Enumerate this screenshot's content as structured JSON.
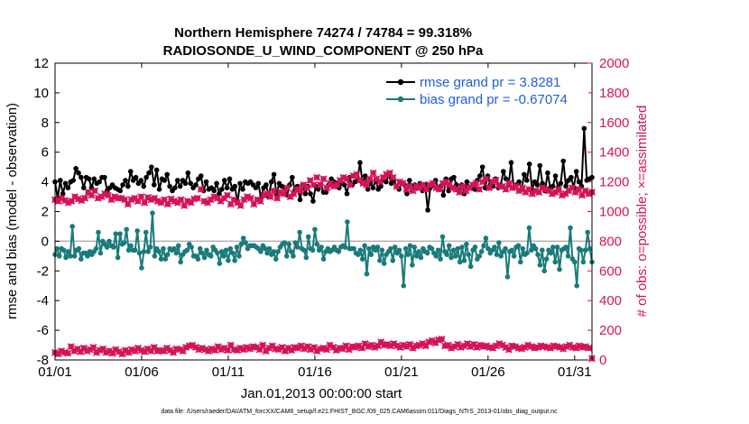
{
  "chart_data": {
    "type": "line",
    "title": "Northern Hemisphere 74274 / 74784 = 99.318%",
    "subtitle": "RADIOSONDE_U_WIND_COMPONENT @ 250 hPa",
    "xlabel": "Jan.01,2013 00:00:00 start",
    "ylabel": "rmse and bias (model - observation)",
    "y2label": "# of obs: o=possible; ×=assimilated",
    "x_ticks": [
      "01/01",
      "01/06",
      "01/11",
      "01/16",
      "01/21",
      "01/26",
      "01/31"
    ],
    "x_tick_days": [
      0,
      5,
      10,
      15,
      20,
      25,
      30
    ],
    "xlim": [
      0,
      31
    ],
    "ylim": [
      -8,
      12
    ],
    "y_ticks": [
      "-8",
      "-6",
      "-4",
      "-2",
      "0",
      "2",
      "4",
      "6",
      "8",
      "10",
      "12"
    ],
    "y2lim": [
      0,
      2000
    ],
    "y2_ticks": [
      "0",
      "200",
      "400",
      "600",
      "800",
      "1000",
      "1200",
      "1400",
      "1600",
      "1800",
      "2000"
    ],
    "zero_line": 0,
    "footer": "data file: /Users/raeder/DAI/ATM_forcXX/CAM6_setup/f.e21.FHIST_BGC.f09_025.CAM6assim.011/Diags_NTrS_2013-01/obs_diag_output.nc",
    "colors": {
      "rmse": "#000000",
      "bias": "#1a7a7a",
      "obs": "#d4145a",
      "legend_text": "#1f5fd9",
      "zero_line": "#b0b0b0"
    },
    "series": [
      {
        "name": "rmse grand pr = 3.8281",
        "axis": "left",
        "marker": "circle",
        "values": [
          4.0,
          2.9,
          4.1,
          3.2,
          3.9,
          3.6,
          4.0,
          4.1,
          4.9,
          4.6,
          4.3,
          3.6,
          4.3,
          4.2,
          3.6,
          4.2,
          3.9,
          4.0,
          4.3,
          4.3,
          3.4,
          3.6,
          3.8,
          3.6,
          3.5,
          3.4,
          3.8,
          4.1,
          3.7,
          4.7,
          4.1,
          4.3,
          3.9,
          4.1,
          3.7,
          4.3,
          4.6,
          5.0,
          3.8,
          4.8,
          3.5,
          4.2,
          4.1,
          4.5,
          3.7,
          3.4,
          3.6,
          4.1,
          3.7,
          4.1,
          3.9,
          4.6,
          3.9,
          3.6,
          3.8,
          4.2,
          4.4,
          3.4,
          4.0,
          3.5,
          3.6,
          3.4,
          3.9,
          3.2,
          3.5,
          4.1,
          3.6,
          4.2,
          3.5,
          3.7,
          2.6,
          3.9,
          3.5,
          4.0,
          3.9,
          4.0,
          3.8,
          3.6,
          3.9,
          2.9,
          3.6,
          3.8,
          3.0,
          4.0,
          4.5,
          3.1,
          3.9,
          3.7,
          3.6,
          3.1,
          3.8,
          4.3,
          3.4,
          3.7,
          2.8,
          3.8,
          3.2,
          3.7,
          3.2,
          2.7,
          3.7,
          3.5,
          3.8,
          3.3,
          3.3,
          3.8,
          4.2,
          4.0,
          3.9,
          3.6,
          3.9,
          3.8,
          3.2,
          4.3,
          3.8,
          4.0,
          4.1,
          5.3,
          3.9,
          4.4,
          3.5,
          3.9,
          3.6,
          4.1,
          3.5,
          3.7,
          4.2,
          4.0,
          4.5,
          3.9,
          4.1,
          3.7,
          3.5,
          3.9,
          3.8,
          3.2,
          4.1,
          3.4,
          3.8,
          3.6,
          3.9,
          3.4,
          3.8,
          2.1,
          3.6,
          3.8,
          4.1,
          3.5,
          3.7,
          3.1,
          4.2,
          3.4,
          4.2,
          4.3,
          3.8,
          3.4,
          3.8,
          3.2,
          4.0,
          3.6,
          3.7,
          3.5,
          4.1,
          4.4,
          5.0,
          3.6,
          4.4,
          3.8,
          3.7,
          4.2,
          3.6,
          3.8,
          4.7,
          4.2,
          3.8,
          5.3,
          3.6,
          3.8,
          4.0,
          3.5,
          4.5,
          4.1,
          5.2,
          3.5,
          4.0,
          3.8,
          5.1,
          3.9,
          3.4,
          4.6,
          3.6,
          3.7,
          4.4,
          3.6,
          3.9,
          5.4,
          3.7,
          4.1,
          4.3,
          3.6,
          4.7,
          4.0,
          3.7,
          7.6,
          4.1,
          4.2,
          4.3
        ]
      },
      {
        "name": "bias grand pr = -0.67074",
        "axis": "left",
        "marker": "circle",
        "values": [
          -0.9,
          -0.5,
          -1.0,
          -0.5,
          -0.6,
          -1.1,
          -0.7,
          -1.0,
          1.0,
          -1.0,
          -0.6,
          -0.5,
          -1.2,
          -0.8,
          -0.8,
          -1.0,
          -0.7,
          -0.9,
          -0.7,
          -0.5,
          0.6,
          -0.8,
          0.0,
          -0.2,
          -0.4,
          0.0,
          -0.3,
          -0.4,
          0.5,
          -1.1,
          0.5,
          -0.2,
          -0.1,
          0.8,
          -0.6,
          -0.3,
          -0.6,
          -0.6,
          0.7,
          -0.8,
          -1.8,
          -0.7,
          0.6,
          -0.7,
          -0.4,
          1.9,
          -1.0,
          -0.5,
          -0.7,
          -1.2,
          -0.5,
          -1.2,
          -0.9,
          -0.5,
          -0.6,
          -0.5,
          -0.8,
          -0.3,
          -1.4,
          -0.9,
          -0.7,
          -0.6,
          -0.2,
          -0.4,
          -1.0,
          -1.0,
          -1.2,
          -0.5,
          -0.8,
          -1.1,
          -0.6,
          -0.9,
          -1.0,
          -0.4,
          -0.6,
          -0.8,
          -1.5,
          -0.7,
          -1.0,
          -0.6,
          -1.3,
          -0.5,
          -0.8,
          -1.3,
          -0.4,
          -1.0,
          -0.2,
          0.2,
          -0.1,
          -0.5,
          -0.3,
          -0.3,
          -0.3,
          -0.4,
          -0.5,
          -0.7,
          -0.3,
          -0.5,
          -0.8,
          -0.5,
          -0.9,
          -0.7,
          -1.2,
          -0.7,
          -0.4,
          -0.2,
          -0.1,
          -1.0,
          -0.2,
          -0.7,
          -1.0,
          -0.1,
          -0.4,
          0.6,
          -0.5,
          -0.6,
          -1.1,
          0.3,
          -0.5,
          -0.6,
          0.8,
          -0.2,
          -0.6,
          -0.4,
          -1.2,
          -0.7,
          -0.5,
          -0.7,
          -0.6,
          -0.4,
          -0.6,
          -0.7,
          -0.4,
          -0.3,
          -0.4,
          1.3,
          -0.5,
          -0.5,
          -0.5,
          -0.8,
          -0.9,
          -0.6,
          -1.2,
          -0.3,
          -2.2,
          -0.5,
          -0.9,
          -0.4,
          -0.6,
          -0.4,
          -1.3,
          -0.6,
          -1.5,
          -0.9,
          -0.7,
          -0.5,
          -1.3,
          -0.4,
          -0.8,
          -0.6,
          -1.0,
          -3.0,
          -0.5,
          -0.9,
          -0.3,
          -1.6,
          -0.4,
          -1.0,
          -0.7,
          -1.1,
          -0.5,
          -0.7,
          -0.8,
          -0.4,
          -0.5,
          -0.8,
          -1.0,
          -0.6,
          -1.2,
          0.3,
          -0.7,
          -0.9,
          -0.3,
          -1.1,
          -0.6,
          -1.0,
          -0.5,
          -1.4,
          -0.4,
          -1.3,
          -0.2,
          -0.9,
          -1.7,
          -0.6,
          -0.4,
          -1.2,
          -1.0,
          -0.7,
          -0.3,
          0.2,
          -0.5,
          -0.8,
          -0.6,
          -0.4,
          -0.9,
          -0.1,
          -1.0,
          -0.7,
          -0.5,
          -2.4,
          -0.7,
          -0.6,
          -1.0,
          -0.4,
          -0.3,
          -1.4,
          -0.5,
          -0.9,
          -0.8,
          0.9,
          -0.6,
          -0.3,
          -0.5,
          -0.9,
          -1.6,
          -0.6,
          -2.0,
          -1.2,
          -0.6,
          -0.8,
          -0.4,
          -1.4,
          -0.4,
          -1.9,
          -0.6,
          -0.5,
          -0.4,
          -1.0,
          0.9,
          -1.2,
          -1.4,
          -3.0,
          -0.5,
          -0.6,
          -1.4,
          -0.6,
          0.6,
          -0.5,
          -1.4
        ]
      },
      {
        "name": "obs possible",
        "axis": "right",
        "marker": "circle",
        "values": []
      },
      {
        "name": "obs assimilated",
        "axis": "right",
        "marker": "x",
        "values": [
          1080,
          1070,
          1090,
          1075,
          1060,
          1070,
          1100,
          1085,
          1075,
          1090,
          1130,
          1110,
          1140,
          1090,
          1100,
          1120,
          1110,
          1080,
          1100,
          1090,
          1090,
          1080,
          1050,
          1080,
          1090,
          1070,
          1100,
          1060,
          1095,
          1080,
          1090,
          1070,
          1060,
          1080,
          1050,
          1085,
          1070,
          1060,
          1080,
          1040,
          1070,
          1060,
          1085,
          1090,
          1150,
          1070,
          1060,
          1080,
          1100,
          1090,
          1070,
          1090,
          1110,
          1050,
          1080,
          1060,
          1040,
          1080,
          1100,
          1090,
          1050,
          1080,
          1070,
          1110,
          1120,
          1100,
          1140,
          1090,
          1130,
          1120,
          1160,
          1100,
          1120,
          1150,
          1140,
          1180,
          1160,
          1210,
          1180,
          1230,
          1180,
          1220,
          1160,
          1190,
          1170,
          1180,
          1210,
          1230,
          1220,
          1180,
          1240,
          1250,
          1210,
          1190,
          1180,
          1220,
          1260,
          1220,
          1200,
          1230,
          1250,
          1260,
          1230,
          1170,
          1200,
          1190,
          1150,
          1170,
          1140,
          1170,
          1160,
          1180,
          1150,
          1180,
          1190,
          1160,
          1150,
          1190,
          1200,
          1180,
          1160,
          1150,
          1130,
          1170,
          1140,
          1160,
          1180,
          1190,
          1150,
          1200,
          1220,
          1160,
          1200,
          1210,
          1170,
          1170,
          1150,
          1190,
          1160,
          1170,
          1140,
          1160,
          1130,
          1150,
          1120,
          1140,
          1130,
          1160,
          1150,
          1140,
          1120,
          1130,
          1150,
          1110,
          1120,
          1140,
          1160,
          1130,
          1150,
          1110,
          1140,
          1120,
          1130
        ]
      },
      {
        "name": "obs (bottom)",
        "axis": "right",
        "marker": "x",
        "values": [
          50,
          40,
          60,
          50,
          45,
          90,
          60,
          75,
          55,
          80,
          60,
          70,
          85,
          50,
          65,
          75,
          50,
          60,
          45,
          70,
          55,
          40,
          65,
          50,
          70,
          60,
          80,
          65,
          55,
          75,
          60,
          85,
          60,
          65,
          60,
          80,
          65,
          50,
          75,
          70,
          60,
          85,
          95,
          100,
          85,
          70,
          80,
          70,
          60,
          75,
          65,
          90,
          70,
          80,
          65,
          100,
          70,
          65,
          80,
          70,
          85,
          75,
          90,
          85,
          70,
          100,
          60,
          80,
          95,
          75,
          70,
          85,
          60,
          80,
          65,
          85,
          80,
          95,
          75,
          90,
          70,
          85,
          60,
          75,
          80,
          70,
          100,
          85,
          65,
          80,
          75,
          95,
          70,
          90,
          85,
          95,
          80,
          110,
          90,
          100,
          85,
          95,
          120,
          100,
          105,
          95,
          110,
          95,
          85,
          100,
          90,
          105,
          80,
          95,
          100,
          110,
          95,
          120,
          130,
          115,
          135,
          140,
          95,
          100,
          80,
          90,
          105,
          85,
          95,
          110,
          90,
          105,
          85,
          100,
          90,
          95,
          85,
          80,
          95,
          110,
          100,
          85,
          70,
          95,
          90,
          80,
          75,
          85,
          100,
          90,
          80,
          85,
          95,
          90,
          85,
          80,
          95,
          90,
          85,
          75,
          90,
          100,
          85,
          80,
          95,
          85,
          90,
          80,
          10
        ]
      }
    ],
    "legend": [
      "rmse grand pr = 3.8281",
      "bias grand pr = -0.67074"
    ],
    "legend_position": "top-right"
  }
}
